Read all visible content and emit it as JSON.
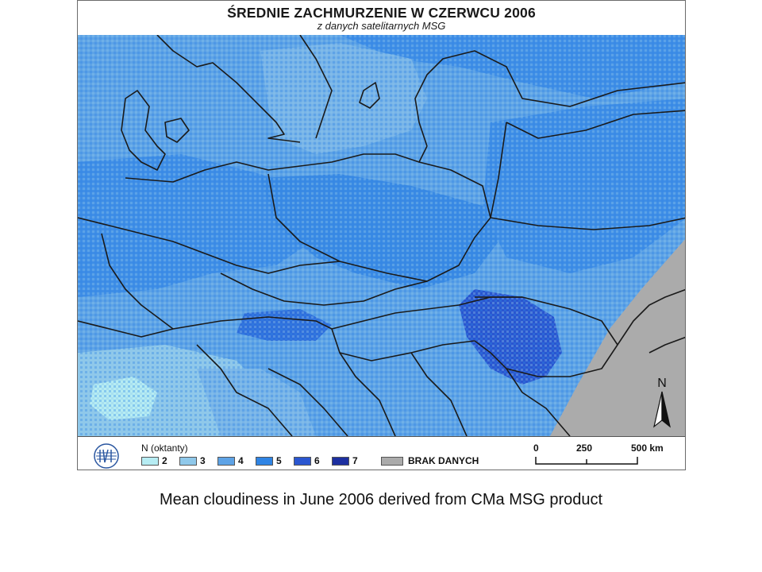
{
  "map": {
    "title": "ŚREDNIE ZACHMURZENIE W CZERWCU 2006",
    "subtitle": "z danych satelitarnych MSG",
    "north_label": "N"
  },
  "legend": {
    "heading": "N (oktanty)",
    "items": [
      {
        "label": "2",
        "color": "#b6ecf3"
      },
      {
        "label": "3",
        "color": "#8fc8ea"
      },
      {
        "label": "4",
        "color": "#5ea3e6"
      },
      {
        "label": "5",
        "color": "#2f84e4"
      },
      {
        "label": "6",
        "color": "#2a56d0"
      },
      {
        "label": "7",
        "color": "#1d2fa0"
      },
      {
        "label": "BRAK DANYCH",
        "color": "#ababab"
      }
    ],
    "scale": {
      "labels": [
        "0",
        "250",
        "500 km"
      ]
    }
  },
  "caption": "Mean cloudiness in June 2006 derived from CMa MSG product"
}
